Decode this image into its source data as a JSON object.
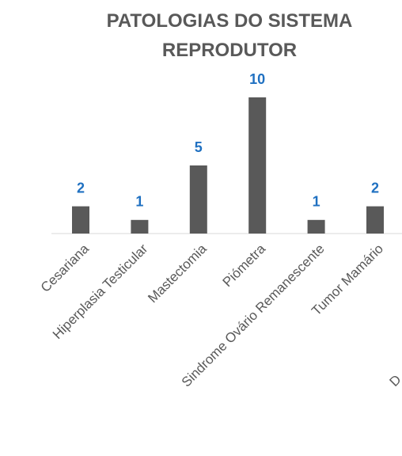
{
  "chart_data": {
    "type": "bar",
    "title": "PATOLOGIAS DO SISTEMA REPRODUTOR",
    "categories": [
      "Cesariana",
      "Hiperplasia Testicular",
      "Mastectomia",
      "Piómetra",
      "Sindrome Ovário Remanescente",
      "Tumor Mamário"
    ],
    "values": [
      2,
      1,
      5,
      10,
      1,
      2
    ],
    "color": "#595959",
    "label_color": "#1f70c1",
    "ylim": [
      0,
      10
    ],
    "annotations": [
      "D"
    ]
  }
}
